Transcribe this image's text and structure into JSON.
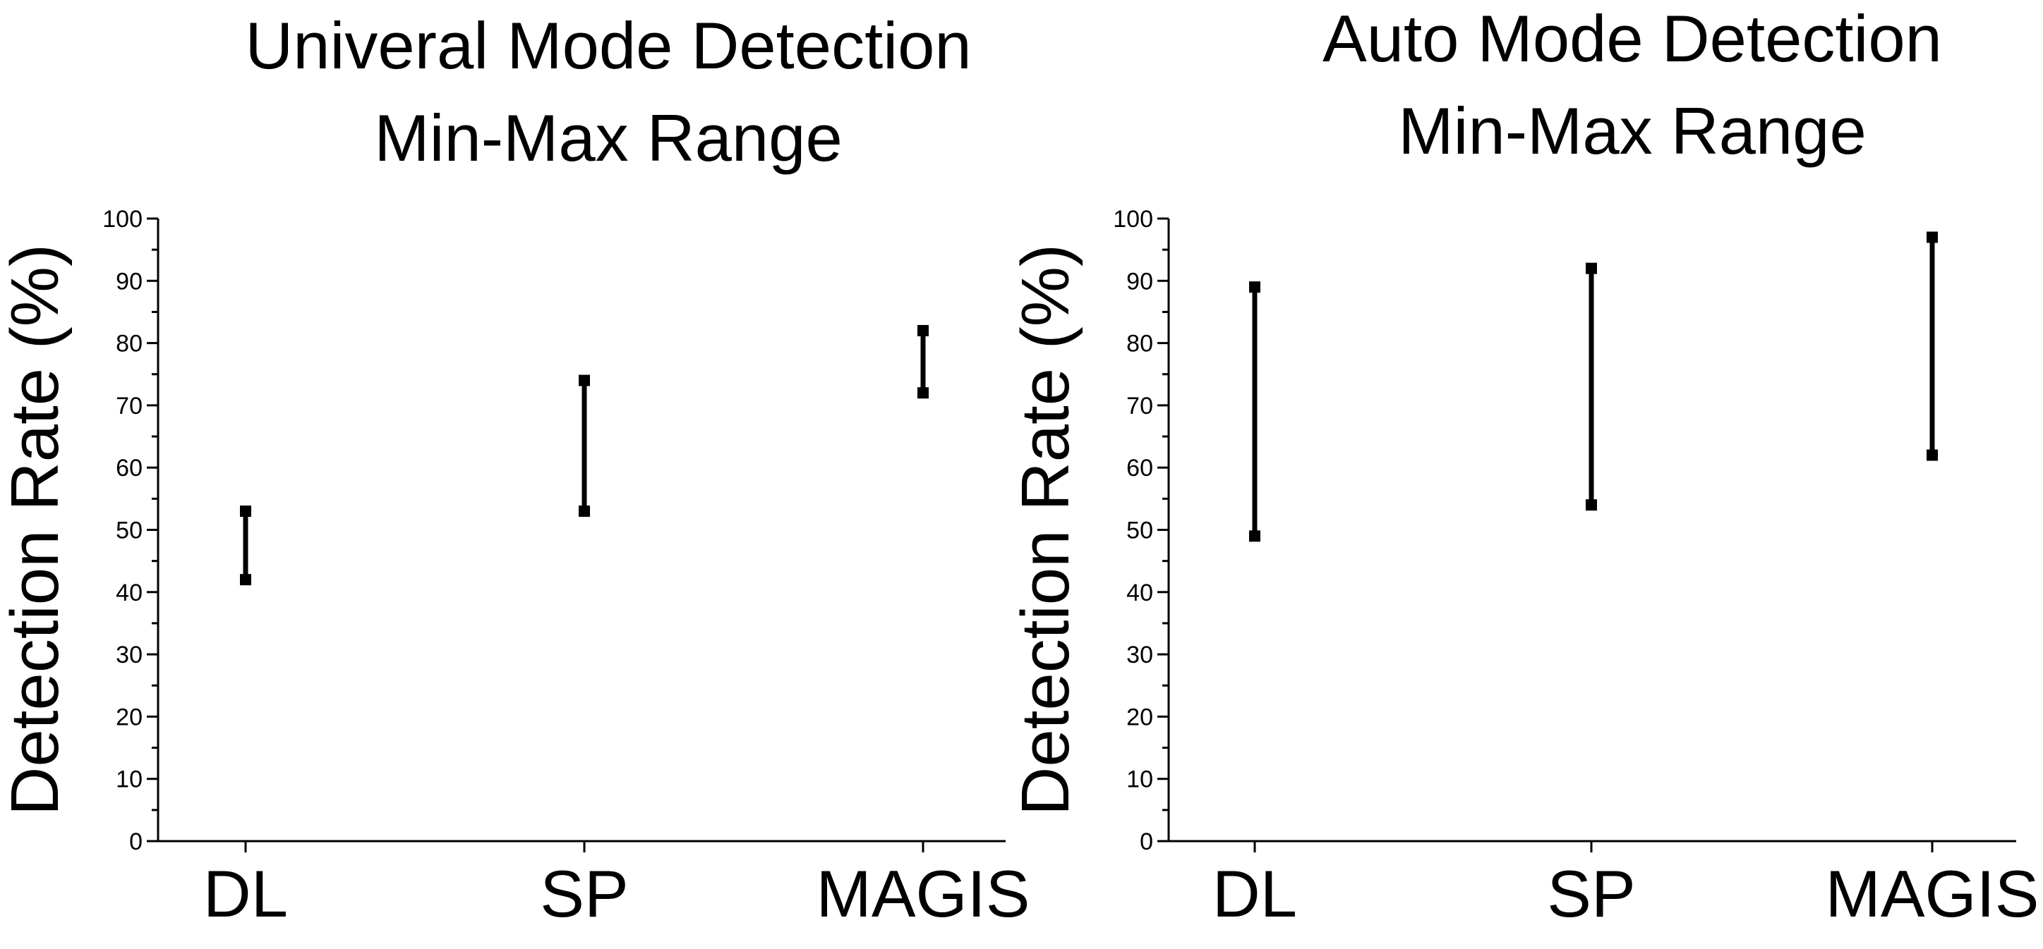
{
  "chart_data": [
    {
      "type": "range",
      "title": [
        "Univeral Mode Detection",
        "Min-Max Range"
      ],
      "ylabel": "Detection Rate (%)",
      "xlabel": "",
      "categories": [
        "DL",
        "SP",
        "MAGIS"
      ],
      "min": [
        42,
        53,
        72
      ],
      "max": [
        53,
        74,
        82
      ],
      "ylim": [
        0,
        100
      ],
      "yticks": [
        0,
        10,
        20,
        30,
        40,
        50,
        60,
        70,
        80,
        90,
        100
      ],
      "grid": false
    },
    {
      "type": "range",
      "title": [
        "Auto Mode Detection",
        "Min-Max Range"
      ],
      "ylabel": "Detection Rate (%)",
      "xlabel": "",
      "categories": [
        "DL",
        "SP",
        "MAGIS"
      ],
      "min": [
        49,
        54,
        62
      ],
      "max": [
        89,
        92,
        97
      ],
      "ylim": [
        0,
        100
      ],
      "yticks": [
        0,
        10,
        20,
        30,
        40,
        50,
        60,
        70,
        80,
        90,
        100
      ],
      "grid": false
    }
  ],
  "colors": {
    "ink": "#000000",
    "background": "#ffffff"
  }
}
